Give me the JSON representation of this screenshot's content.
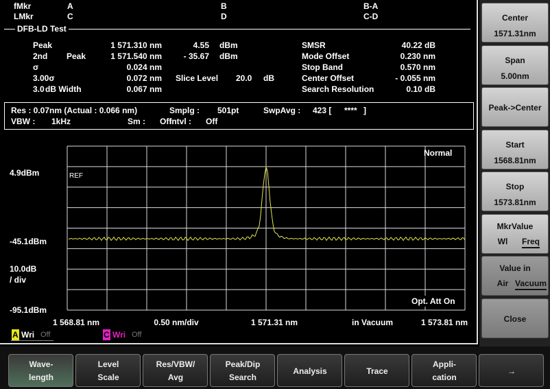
{
  "markers": [
    [
      "fMkr",
      "A",
      "B",
      "B-A"
    ],
    [
      "LMkr",
      "C",
      "D",
      "C-D"
    ]
  ],
  "test_title": "DFB-LD Test",
  "results_left": [
    [
      "Peak",
      "1 571.310 nm",
      "4.55",
      "dBm"
    ],
    [
      "2nd",
      "Peak",
      "1 571.540 nm",
      "- 35.67",
      "dBm"
    ],
    [
      "σ",
      "0.024 nm"
    ],
    [
      "3.00σ",
      "0.072 nm",
      "Slice Level",
      "20.0",
      "dB"
    ],
    [
      "3.0",
      "dB Width",
      "0.067 nm"
    ]
  ],
  "results_right": [
    [
      "SMSR",
      "40.22 dB"
    ],
    [
      "Mode Offset",
      "0.230 nm"
    ],
    [
      "Stop Band",
      "0.570 nm"
    ],
    [
      "Center Offset",
      "- 0.055 nm"
    ],
    [
      "Search Resolution",
      "0.10 dB"
    ]
  ],
  "settings": [
    [
      "Res : 0.07nm (Actual : 0.066 nm)",
      "Smplg :",
      "501pt",
      "SwpAvg :",
      "423 [",
      "****",
      "]"
    ],
    [
      "VBW :",
      "1kHz",
      "Sm :",
      "Off",
      "Intvl :",
      "Off"
    ]
  ],
  "graph": {
    "mode": "Normal",
    "ref": "REF",
    "y_labels": [
      "4.9dBm",
      "-45.1dBm",
      "10.0dB",
      "/ div",
      "-95.1dBm"
    ],
    "att": "Opt. Att On",
    "x_labels": [
      "1 568.81 nm",
      "0.50 nm/div",
      "1 571.31 nm",
      "in Vacuum",
      "1 573.81 nm"
    ]
  },
  "traces": [
    [
      "A",
      "Wri",
      "Off"
    ],
    [
      "C",
      "Wri",
      "Off"
    ]
  ],
  "side_buttons": [
    [
      "Center",
      "1571.31nm"
    ],
    [
      "Span",
      "5.00nm"
    ],
    [
      "Peak->Center"
    ],
    [
      "Start",
      "1568.81nm"
    ],
    [
      "Stop",
      "1573.81nm"
    ],
    [
      "MkrValue",
      "Wl",
      "Freq"
    ],
    [
      "Value in",
      "Air",
      "Vacuum"
    ],
    [
      "Close"
    ]
  ],
  "bottom_tabs": [
    [
      "Wave-",
      "length"
    ],
    [
      "Level",
      "Scale"
    ],
    [
      "Res/VBW/",
      "Avg"
    ],
    [
      "Peak/Dip",
      "Search"
    ],
    [
      "Analysis"
    ],
    [
      "Trace"
    ],
    [
      "Appli-",
      "cation"
    ],
    [
      "→"
    ]
  ]
}
